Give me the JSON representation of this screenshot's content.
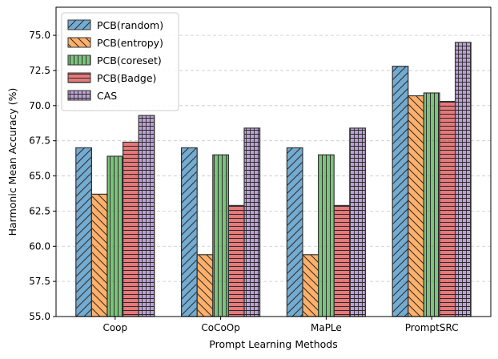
{
  "chart_data": {
    "type": "bar",
    "title": "",
    "xlabel": "Prompt Learning Methods",
    "ylabel": "Harmonic Mean Accuracy (%)",
    "ylim": [
      55.0,
      77.0
    ],
    "yticks": [
      "55.0",
      "57.5",
      "60.0",
      "62.5",
      "65.0",
      "67.5",
      "70.0",
      "72.5",
      "75.0"
    ],
    "grid": "horizontal dashed",
    "legend_position": "top-left",
    "categories": [
      "Coop",
      "CoCoOp",
      "MaPLe",
      "PromptSRC"
    ],
    "series": [
      {
        "name": "PCB(random)",
        "color": "#1f77b4",
        "hatch": "diagonal",
        "values": [
          67.0,
          67.0,
          67.0,
          72.8
        ]
      },
      {
        "name": "PCB(entropy)",
        "color": "#ff7f0e",
        "hatch": "backslash",
        "values": [
          63.7,
          59.4,
          59.4,
          70.7
        ]
      },
      {
        "name": "PCB(coreset)",
        "color": "#2ca02c",
        "hatch": "vertical",
        "values": [
          66.4,
          66.5,
          66.5,
          70.9
        ]
      },
      {
        "name": "PCB(Badge)",
        "color": "#d62728",
        "hatch": "horizontal",
        "values": [
          67.4,
          62.9,
          62.9,
          70.3
        ]
      },
      {
        "name": "CAS",
        "color": "#9467bd",
        "hatch": "grid",
        "values": [
          69.3,
          68.4,
          68.4,
          74.5
        ]
      }
    ]
  }
}
